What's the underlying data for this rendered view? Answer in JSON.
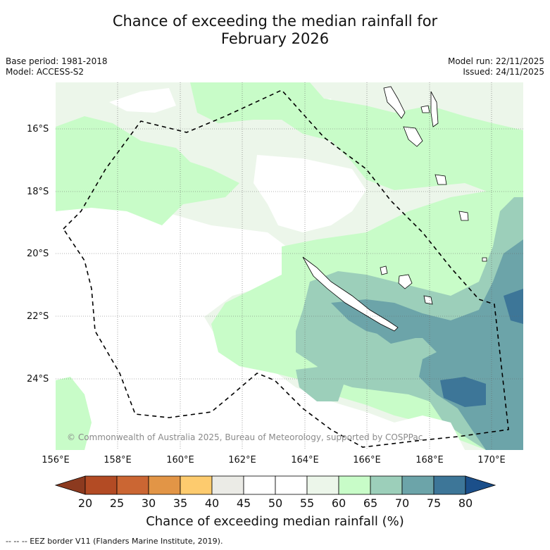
{
  "title_line1": "Chance of exceeding the median rainfall for",
  "title_line2": "February 2026",
  "base_period": "Base period: 1981-2018",
  "model": "Model: ACCESS-S2",
  "model_run": "Model run: 22/11/2025",
  "issued": "Issued: 24/11/2025",
  "copyright": "© Commonwealth of Australia 2025, Bureau of Meteorology, supported by COSPPac",
  "lat_labels": [
    "16°S",
    "18°S",
    "20°S",
    "22°S",
    "24°S"
  ],
  "lon_labels": [
    "156°E",
    "158°E",
    "160°E",
    "162°E",
    "164°E",
    "166°E",
    "168°E",
    "170°E"
  ],
  "colorbar": {
    "ticks": [
      "20",
      "25",
      "30",
      "35",
      "40",
      "45",
      "50",
      "55",
      "60",
      "65",
      "70",
      "75",
      "80"
    ],
    "colors": [
      "#8c3a1f",
      "#b34b24",
      "#cb6633",
      "#e29546",
      "#fdcb6e",
      "#ebebe6",
      "#ffffff",
      "#ffffff",
      "#ecf6ea",
      "#c8fcc8",
      "#9ccfba",
      "#6ca4a9",
      "#3d7698",
      "#1b4f8a"
    ],
    "title": "Chance of exceeding median rainfall (%)"
  },
  "footnote": "--  --  -- EEZ border V11 (Flanders Marine Institute, 2019).",
  "regions": {
    "base": "#ecf6ea",
    "white": "#ffffff",
    "green": "#c8fcc8",
    "teal1": "#9ccfba",
    "teal2": "#6ca4a9",
    "blue": "#3d7698"
  }
}
